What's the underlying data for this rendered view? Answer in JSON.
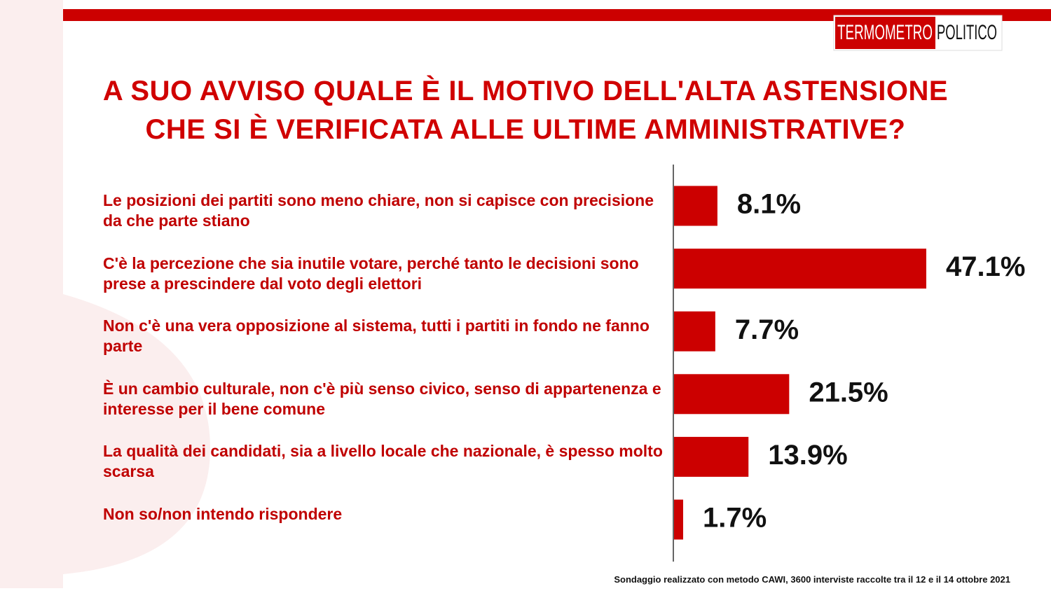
{
  "brand": {
    "left": "TERMOMETRO",
    "right": "POLITICO"
  },
  "chart_data": {
    "type": "bar",
    "orientation": "horizontal",
    "title": [
      "A SUO AVVISO QUALE È IL MOTIVO DELL'ALTA ASTENSIONE",
      "CHE SI È VERIFICATA ALLE ULTIME AMMINISTRATIVE?"
    ],
    "categories": [
      "Le posizioni dei partiti sono meno chiare, non si capisce con precisione da che parte stiano",
      "C'è la percezione che sia inutile votare, perché tanto le decisioni sono prese a prescindere dal voto degli elettori",
      "Non c'è una vera opposizione al sistema, tutti i partiti in fondo ne fanno parte",
      "È un cambio culturale, non c'è più senso civico, senso di appartenenza e interesse per il bene comune",
      "La qualità  dei candidati, sia a livello locale che nazionale, è spesso molto scarsa",
      "Non so/non intendo rispondere"
    ],
    "values": [
      8.1,
      47.1,
      7.7,
      21.5,
      13.9,
      1.7
    ],
    "value_labels": [
      "8.1%",
      "47.1%",
      "7.7%",
      "21.5%",
      "13.9%",
      "1.7%"
    ],
    "color": "#cc0000"
  },
  "footnote": "Sondaggio realizzato con metodo CAWI, 3600 interviste raccolte tra il 12 e il 14  ottobre 2021"
}
